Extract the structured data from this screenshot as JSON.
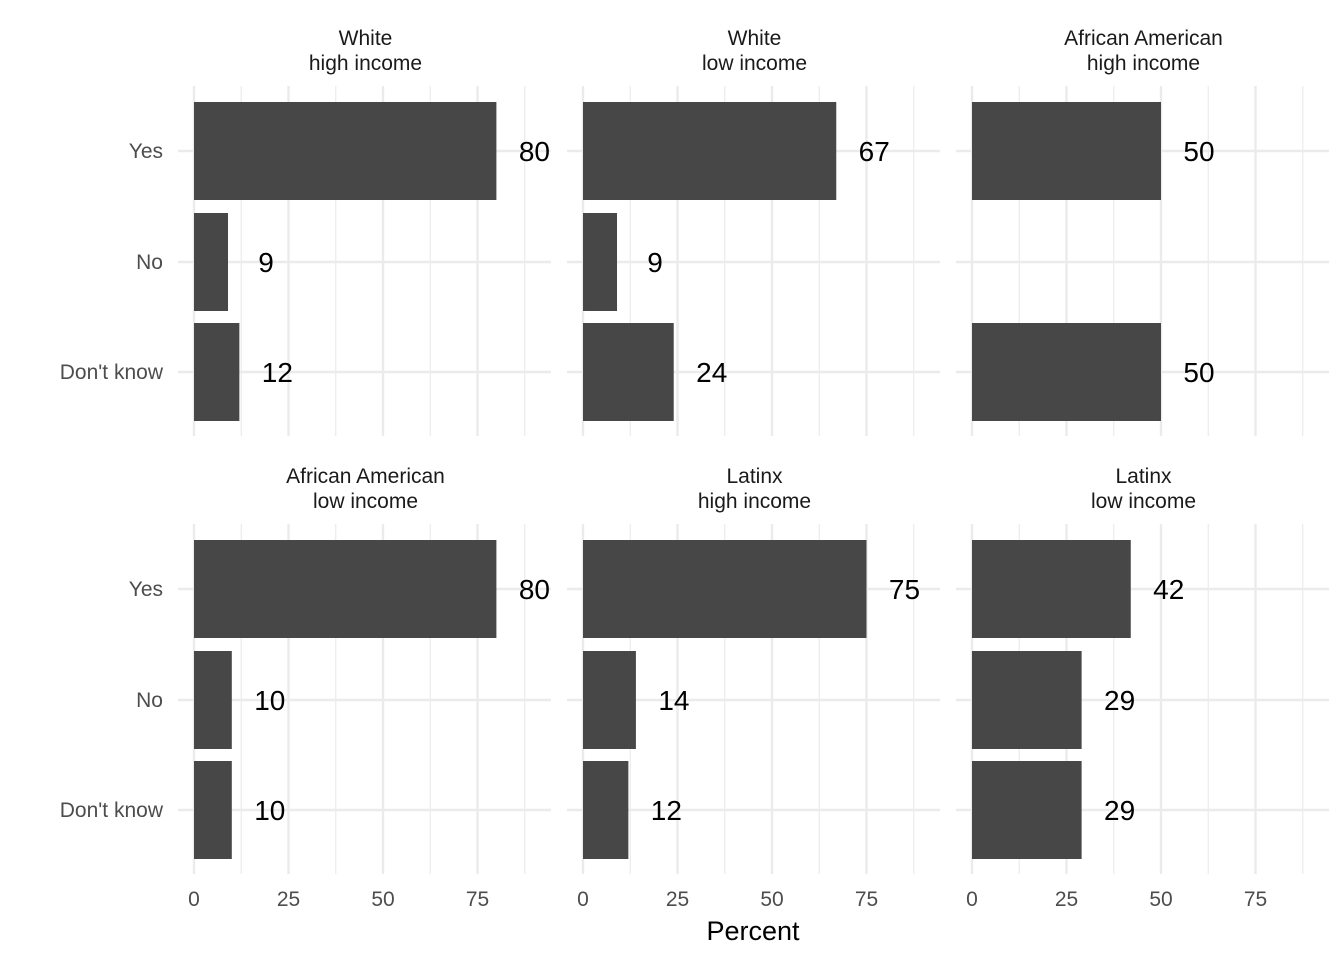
{
  "chart_data": {
    "type": "bar",
    "orientation": "horizontal",
    "facet_layout": "3 columns x 2 rows",
    "categories": [
      "Yes",
      "No",
      "Don't know"
    ],
    "xlabel": "Percent",
    "xlim": [
      0,
      92
    ],
    "x_ticks": [
      "0",
      "25",
      "50",
      "75"
    ],
    "grid": true,
    "bar_color": "#474747",
    "grid_color": "#ebebeb",
    "panels": [
      {
        "strip": [
          "White",
          "high income"
        ],
        "values": [
          80,
          9,
          12
        ],
        "labels": [
          "80",
          "9",
          "12"
        ]
      },
      {
        "strip": [
          "White",
          "low income"
        ],
        "values": [
          67,
          9,
          24
        ],
        "labels": [
          "67",
          "9",
          "24"
        ]
      },
      {
        "strip": [
          "African American",
          "high income"
        ],
        "values": [
          50,
          null,
          50
        ],
        "labels": [
          "50",
          null,
          "50"
        ]
      },
      {
        "strip": [
          "African American",
          "low income"
        ],
        "values": [
          80,
          10,
          10
        ],
        "labels": [
          "80",
          "10",
          "10"
        ]
      },
      {
        "strip": [
          "Latinx",
          "high income"
        ],
        "values": [
          75,
          14,
          12
        ],
        "labels": [
          "75",
          "14",
          "12"
        ]
      },
      {
        "strip": [
          "Latinx",
          "low income"
        ],
        "values": [
          42,
          29,
          29
        ],
        "labels": [
          "42",
          "29",
          "29"
        ]
      }
    ]
  }
}
